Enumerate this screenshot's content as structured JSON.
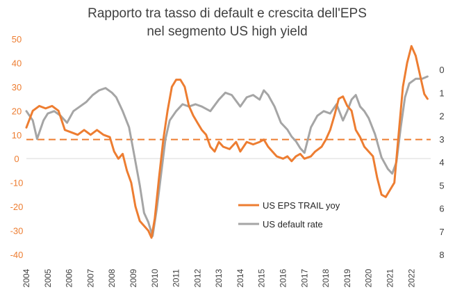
{
  "chart_data": {
    "type": "line",
    "title_lines": [
      "Rapporto tra tasso di default e crescita dell'EPS",
      "nel segmento US high yield"
    ],
    "y_left_ticks": [
      "50",
      "40",
      "30",
      "20",
      "10",
      "0",
      "-10",
      "-20",
      "-30",
      "-40"
    ],
    "y_right_ticks": [
      "0",
      "1",
      "2",
      "3",
      "4",
      "5",
      "6",
      "7",
      "8"
    ],
    "x_tick_labels": [
      "2004",
      "2005",
      "2006",
      "2007",
      "2008",
      "2009",
      "2010",
      "2011",
      "2012",
      "2013",
      "2014",
      "2015",
      "2016",
      "2017",
      "2018",
      "2019",
      "2020",
      "2021",
      "2022"
    ],
    "ylim_left": [
      -40,
      50
    ],
    "ylim_right_inverted": [
      0,
      8
    ],
    "reference_line": {
      "value": 8,
      "axis": "left",
      "style": "dashed",
      "color": "#ED7D31"
    },
    "colors": {
      "eps": "#ED7D31",
      "default": "#A5A5A5",
      "axis_left": "#ED7D31",
      "text": "#404040"
    },
    "legend": {
      "placement": "center-right"
    },
    "series": [
      {
        "name": "US EPS TRAIL yoy",
        "axis": "left",
        "color": "#ED7D31",
        "points": [
          [
            2004.0,
            13
          ],
          [
            2004.3,
            20
          ],
          [
            2004.6,
            22
          ],
          [
            2004.9,
            21
          ],
          [
            2005.2,
            22
          ],
          [
            2005.5,
            20
          ],
          [
            2005.8,
            12
          ],
          [
            2006.1,
            11
          ],
          [
            2006.4,
            10
          ],
          [
            2006.7,
            12
          ],
          [
            2007.0,
            10
          ],
          [
            2007.3,
            12
          ],
          [
            2007.6,
            10
          ],
          [
            2007.9,
            9
          ],
          [
            2008.1,
            3
          ],
          [
            2008.3,
            0
          ],
          [
            2008.5,
            2
          ],
          [
            2008.7,
            -5
          ],
          [
            2008.9,
            -10
          ],
          [
            2009.1,
            -20
          ],
          [
            2009.3,
            -26
          ],
          [
            2009.5,
            -28
          ],
          [
            2009.7,
            -30
          ],
          [
            2009.85,
            -33
          ],
          [
            2010.0,
            -25
          ],
          [
            2010.2,
            -8
          ],
          [
            2010.4,
            8
          ],
          [
            2010.6,
            20
          ],
          [
            2010.8,
            30
          ],
          [
            2011.0,
            33
          ],
          [
            2011.2,
            33
          ],
          [
            2011.4,
            30
          ],
          [
            2011.6,
            22
          ],
          [
            2011.8,
            18
          ],
          [
            2012.0,
            15
          ],
          [
            2012.2,
            12
          ],
          [
            2012.4,
            10
          ],
          [
            2012.6,
            5
          ],
          [
            2012.8,
            3
          ],
          [
            2013.0,
            7
          ],
          [
            2013.2,
            5
          ],
          [
            2013.5,
            4
          ],
          [
            2013.8,
            7
          ],
          [
            2014.0,
            3
          ],
          [
            2014.3,
            7
          ],
          [
            2014.6,
            6
          ],
          [
            2014.9,
            7
          ],
          [
            2015.1,
            8
          ],
          [
            2015.3,
            5
          ],
          [
            2015.5,
            3
          ],
          [
            2015.7,
            1
          ],
          [
            2016.0,
            0
          ],
          [
            2016.2,
            1
          ],
          [
            2016.4,
            -1
          ],
          [
            2016.6,
            1
          ],
          [
            2016.8,
            2
          ],
          [
            2017.0,
            0
          ],
          [
            2017.3,
            1
          ],
          [
            2017.5,
            3
          ],
          [
            2017.8,
            5
          ],
          [
            2018.0,
            8
          ],
          [
            2018.2,
            12
          ],
          [
            2018.4,
            18
          ],
          [
            2018.6,
            25
          ],
          [
            2018.8,
            26
          ],
          [
            2019.0,
            22
          ],
          [
            2019.2,
            20
          ],
          [
            2019.4,
            12
          ],
          [
            2019.6,
            9
          ],
          [
            2019.8,
            5
          ],
          [
            2020.0,
            3
          ],
          [
            2020.2,
            1
          ],
          [
            2020.4,
            -8
          ],
          [
            2020.6,
            -15
          ],
          [
            2020.8,
            -16
          ],
          [
            2021.0,
            -13
          ],
          [
            2021.2,
            -10
          ],
          [
            2021.4,
            10
          ],
          [
            2021.6,
            30
          ],
          [
            2021.8,
            40
          ],
          [
            2022.0,
            47
          ],
          [
            2022.2,
            43
          ],
          [
            2022.4,
            35
          ],
          [
            2022.6,
            27
          ],
          [
            2022.75,
            25
          ]
        ]
      },
      {
        "name": "US default rate",
        "axis": "right",
        "color": "#A5A5A5",
        "points": [
          [
            2004.0,
            1.8
          ],
          [
            2004.3,
            2.2
          ],
          [
            2004.5,
            3.0
          ],
          [
            2004.8,
            2.2
          ],
          [
            2005.0,
            1.9
          ],
          [
            2005.3,
            1.8
          ],
          [
            2005.6,
            2.0
          ],
          [
            2005.9,
            2.3
          ],
          [
            2006.2,
            1.8
          ],
          [
            2006.5,
            1.6
          ],
          [
            2006.8,
            1.4
          ],
          [
            2007.1,
            1.1
          ],
          [
            2007.4,
            0.9
          ],
          [
            2007.7,
            0.8
          ],
          [
            2008.0,
            1.0
          ],
          [
            2008.2,
            1.2
          ],
          [
            2008.5,
            1.8
          ],
          [
            2008.8,
            2.5
          ],
          [
            2009.0,
            3.5
          ],
          [
            2009.3,
            5.0
          ],
          [
            2009.5,
            6.2
          ],
          [
            2009.7,
            6.6
          ],
          [
            2009.9,
            7.2
          ],
          [
            2010.1,
            6.0
          ],
          [
            2010.3,
            4.5
          ],
          [
            2010.5,
            3.0
          ],
          [
            2010.7,
            2.2
          ],
          [
            2011.0,
            1.8
          ],
          [
            2011.3,
            1.5
          ],
          [
            2011.6,
            1.6
          ],
          [
            2011.9,
            1.5
          ],
          [
            2012.2,
            1.6
          ],
          [
            2012.6,
            1.8
          ],
          [
            2013.0,
            1.3
          ],
          [
            2013.3,
            1.0
          ],
          [
            2013.6,
            1.1
          ],
          [
            2014.0,
            1.6
          ],
          [
            2014.3,
            1.2
          ],
          [
            2014.6,
            1.1
          ],
          [
            2014.9,
            1.3
          ],
          [
            2015.1,
            0.9
          ],
          [
            2015.3,
            1.1
          ],
          [
            2015.6,
            1.6
          ],
          [
            2015.9,
            2.3
          ],
          [
            2016.2,
            2.6
          ],
          [
            2016.4,
            2.9
          ],
          [
            2016.6,
            3.1
          ],
          [
            2016.8,
            3.4
          ],
          [
            2017.0,
            3.6
          ],
          [
            2017.3,
            2.5
          ],
          [
            2017.6,
            2.0
          ],
          [
            2017.9,
            1.8
          ],
          [
            2018.2,
            1.9
          ],
          [
            2018.5,
            1.5
          ],
          [
            2018.8,
            2.2
          ],
          [
            2019.0,
            1.8
          ],
          [
            2019.2,
            1.3
          ],
          [
            2019.4,
            1.1
          ],
          [
            2019.6,
            1.6
          ],
          [
            2019.8,
            1.8
          ],
          [
            2020.0,
            2.1
          ],
          [
            2020.3,
            2.8
          ],
          [
            2020.6,
            3.8
          ],
          [
            2020.9,
            4.3
          ],
          [
            2021.1,
            4.5
          ],
          [
            2021.3,
            4.0
          ],
          [
            2021.5,
            2.5
          ],
          [
            2021.7,
            1.2
          ],
          [
            2021.9,
            0.6
          ],
          [
            2022.2,
            0.4
          ],
          [
            2022.5,
            0.4
          ],
          [
            2022.75,
            0.3
          ]
        ]
      }
    ]
  }
}
